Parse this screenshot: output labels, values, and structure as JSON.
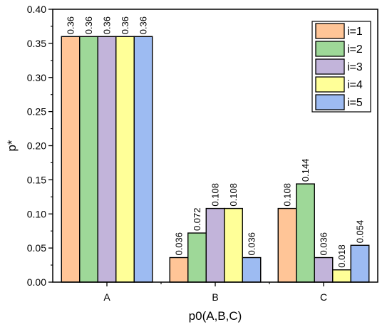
{
  "chart_data": {
    "type": "bar",
    "title": "",
    "xlabel": "p0(A,B,C)",
    "ylabel": "p*",
    "ylim": [
      0,
      0.4
    ],
    "yticks": [
      "0.00",
      "0.05",
      "0.10",
      "0.15",
      "0.20",
      "0.25",
      "0.30",
      "0.35",
      "0.40"
    ],
    "grid": false,
    "legend_position": "top-right",
    "categories": [
      "A",
      "B",
      "C"
    ],
    "series": [
      {
        "name": "i=1",
        "color": "#FFC597",
        "values": [
          0.36,
          0.036,
          0.108
        ],
        "labels": [
          "0.36",
          "0.036",
          "0.108"
        ]
      },
      {
        "name": "i=2",
        "color": "#9ED898",
        "values": [
          0.36,
          0.072,
          0.144
        ],
        "labels": [
          "0.36",
          "0.072",
          "0.144"
        ]
      },
      {
        "name": "i=3",
        "color": "#C2B4DA",
        "values": [
          0.36,
          0.108,
          0.036
        ],
        "labels": [
          "0.36",
          "0.108",
          "0.036"
        ]
      },
      {
        "name": "i=4",
        "color": "#FFFF98",
        "values": [
          0.36,
          0.108,
          0.018
        ],
        "labels": [
          "0.36",
          "0.108",
          "0.018"
        ]
      },
      {
        "name": "i=5",
        "color": "#9DBBF2",
        "values": [
          0.36,
          0.036,
          0.054
        ],
        "labels": [
          "0.36",
          "0.036",
          "0.054"
        ]
      }
    ]
  }
}
